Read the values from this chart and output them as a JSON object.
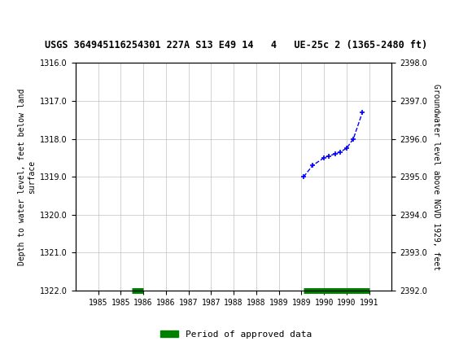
{
  "title": "USGS 364945116254301 227A S13 E49 14   4   UE-25c 2 (1365-2480 ft)",
  "ylabel_left": "Depth to water level, feet below land\nsurface",
  "ylabel_right": "Groundwater level above NGVD 1929, feet",
  "ylim_left": [
    1322.0,
    1316.0
  ],
  "ylim_right": [
    2392.0,
    2398.0
  ],
  "xlim": [
    1984.5,
    1991.5
  ],
  "yticks_left": [
    1316.0,
    1317.0,
    1318.0,
    1319.0,
    1320.0,
    1321.0,
    1322.0
  ],
  "yticks_right": [
    2392.0,
    2393.0,
    2394.0,
    2395.0,
    2396.0,
    2397.0,
    2398.0
  ],
  "xtick_positions": [
    1985,
    1985.5,
    1986,
    1986.5,
    1987,
    1987.5,
    1988,
    1988.5,
    1989,
    1989.5,
    1990,
    1990.5,
    1991
  ],
  "xtick_labels": [
    "1985",
    "1985",
    "1986",
    "1986",
    "1987",
    "1987",
    "1988",
    "1988",
    "1989",
    "1989",
    "1990",
    "1990",
    "1991"
  ],
  "data_x": [
    1989.55,
    1989.75,
    1990.0,
    1990.1,
    1990.25,
    1990.35,
    1990.5,
    1990.65,
    1990.85
  ],
  "data_y_right": [
    2395.0,
    2395.3,
    2395.5,
    2395.55,
    2395.6,
    2395.65,
    2395.75,
    2396.0,
    2396.7
  ],
  "line_color": "#0000ff",
  "marker_color": "#0000ff",
  "approved_bars": [
    {
      "x_start": 1985.75,
      "x_end": 1986.0,
      "color": "#008000"
    },
    {
      "x_start": 1989.55,
      "x_end": 1991.0,
      "color": "#008000"
    }
  ],
  "header_bg_color": "#006633",
  "header_text_color": "#ffffff",
  "bg_color": "#ffffff",
  "grid_color": "#c0c0c0",
  "legend_label": "Period of approved data",
  "legend_color": "#008000"
}
